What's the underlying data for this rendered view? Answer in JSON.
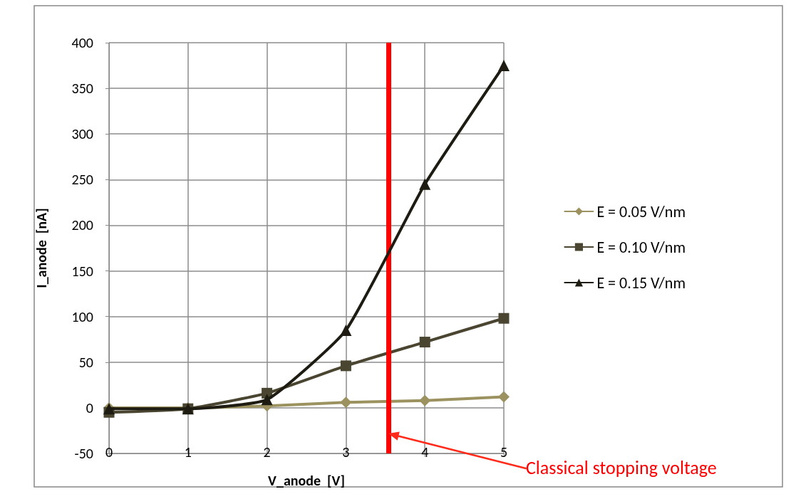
{
  "chart_data": {
    "type": "line",
    "xlabel": "V_anode  [V]",
    "ylabel": "I_anode  [nA]",
    "x": [
      0,
      1,
      2,
      3,
      4,
      5
    ],
    "series": [
      {
        "name": "E = 0.05 V/nm",
        "color": "#9c9260",
        "marker": "diamond",
        "values": [
          0,
          0,
          2,
          6,
          8,
          12
        ]
      },
      {
        "name": "E = 0.10 V/nm",
        "color": "#4a4530",
        "marker": "square",
        "values": [
          -5,
          -1,
          16,
          46,
          72,
          98
        ]
      },
      {
        "name": "E = 0.15 V/nm",
        "color": "#1e1c12",
        "marker": "triangle",
        "values": [
          -1,
          -1,
          9,
          85,
          245,
          375
        ]
      }
    ],
    "xlim": [
      0,
      5
    ],
    "xticks": [
      0,
      1,
      2,
      3,
      4,
      5
    ],
    "ylim": [
      -50,
      400
    ],
    "yticks": [
      -50,
      0,
      50,
      100,
      150,
      200,
      250,
      300,
      350,
      400
    ],
    "grid": true,
    "legend": "right",
    "line_style": "solid",
    "ref_lines": [
      {
        "axis": "x",
        "value": 3.54,
        "color": "#ff0000"
      }
    ],
    "annotations": [
      {
        "text": "Classical stopping voltage",
        "x": 3.54,
        "y": -28
      }
    ]
  }
}
